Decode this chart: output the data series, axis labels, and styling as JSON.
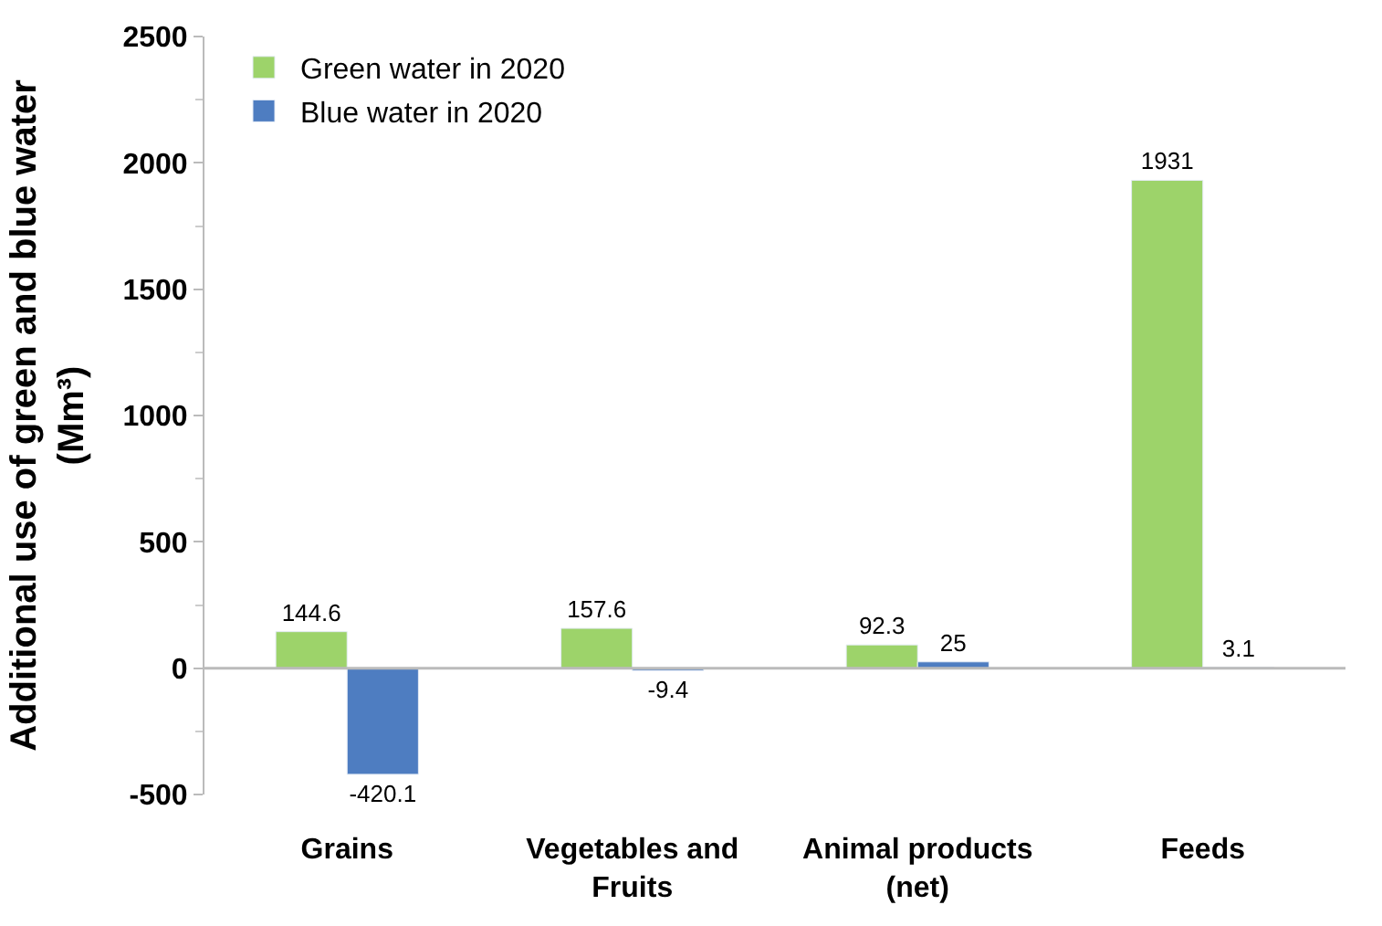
{
  "chart_data": {
    "type": "bar",
    "ylabel": "Additional use of green and blue water (Mm³)",
    "categories": [
      "Grains",
      "Vegetables and Fruits",
      "Animal products (net)",
      "Feeds"
    ],
    "series": [
      {
        "name": "Green water in 2020",
        "color": "#9dd36a",
        "values": [
          144.6,
          157.6,
          92.3,
          1931
        ]
      },
      {
        "name": "Blue water in 2020",
        "color": "#4e7dc1",
        "values": [
          -420.1,
          -9.4,
          25,
          3.1
        ]
      }
    ],
    "ylim": [
      -500,
      2500
    ],
    "yticks": [
      -500,
      0,
      500,
      1000,
      1500,
      2000,
      2500
    ],
    "ref_lines": [
      {
        "axis": "y",
        "value": 0,
        "color": "#bbbbbb"
      }
    ],
    "data_labels": true,
    "legend": "top left"
  }
}
